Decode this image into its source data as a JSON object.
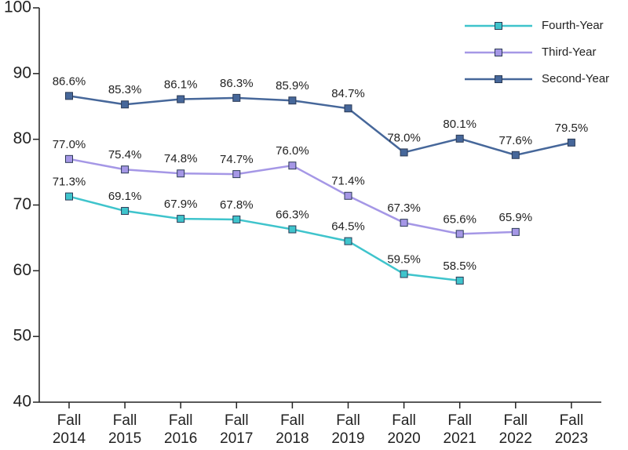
{
  "chart_data": {
    "type": "line",
    "categories": [
      "Fall 2014",
      "Fall 2015",
      "Fall 2016",
      "Fall 2017",
      "Fall 2018",
      "Fall 2019",
      "Fall 2020",
      "Fall 2021",
      "Fall 2022",
      "Fall 2023"
    ],
    "series": [
      {
        "name": "Fourth-Year",
        "color": "#3fc4cc",
        "values": [
          71.3,
          69.1,
          67.9,
          67.8,
          66.3,
          64.5,
          59.5,
          58.5,
          null,
          null
        ],
        "value_labels": [
          "71.3%",
          "69.1%",
          "67.9%",
          "67.8%",
          "66.3%",
          "64.5%",
          "59.5%",
          "58.5%",
          null,
          null
        ]
      },
      {
        "name": "Third-Year",
        "color": "#a597e6",
        "values": [
          77.0,
          75.4,
          74.8,
          74.7,
          76.0,
          71.4,
          67.3,
          65.6,
          65.9,
          null
        ],
        "value_labels": [
          "77.0%",
          "75.4%",
          "74.8%",
          "74.7%",
          "76.0%",
          "71.4%",
          "67.3%",
          "65.6%",
          "65.9%",
          null
        ]
      },
      {
        "name": "Second-Year",
        "color": "#46679a",
        "values": [
          86.6,
          85.3,
          86.1,
          86.3,
          85.9,
          84.7,
          78.0,
          80.1,
          77.6,
          79.5
        ],
        "value_labels": [
          "86.6%",
          "85.3%",
          "86.1%",
          "86.3%",
          "85.9%",
          "84.7%",
          "78.0%",
          "80.1%",
          "77.6%",
          "79.5%"
        ]
      }
    ],
    "ylim": [
      40,
      100
    ],
    "yticks": [
      40,
      50,
      60,
      70,
      80,
      90,
      100
    ],
    "grid": false,
    "legend": "top-right"
  }
}
